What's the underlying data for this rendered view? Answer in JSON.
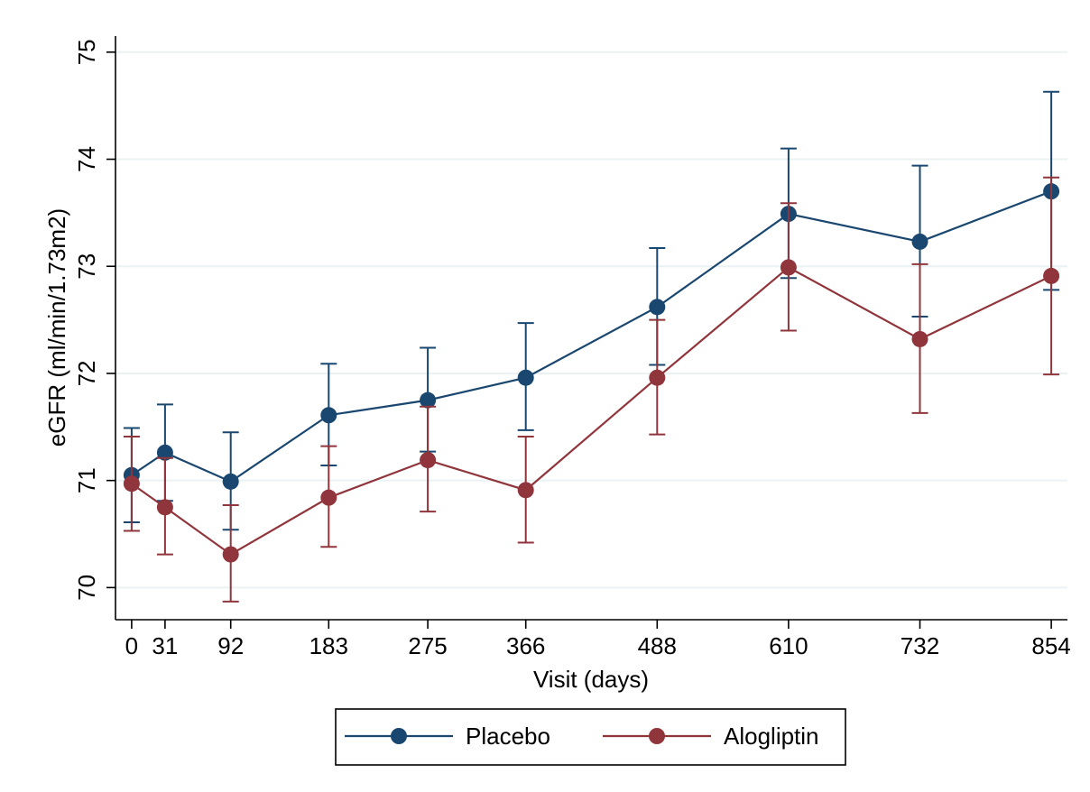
{
  "chart_data": {
    "type": "line",
    "title": "",
    "xlabel": "Visit (days)",
    "ylabel": "eGFR (ml/min/1.73m2)",
    "x": [
      0,
      31,
      92,
      183,
      275,
      366,
      488,
      610,
      732,
      854
    ],
    "x_tick_labels": [
      "0",
      "31",
      "92",
      "183",
      "275",
      "366",
      "488",
      "610",
      "732",
      "854"
    ],
    "y_ticks": [
      70,
      71,
      72,
      73,
      74,
      75
    ],
    "y_tick_labels": [
      "70",
      "71",
      "72",
      "73",
      "74",
      "75"
    ],
    "xlim": [
      -15,
      869
    ],
    "ylim": [
      69.7,
      75.15
    ],
    "grid": "horizontal",
    "legend_position": "bottom",
    "series": [
      {
        "name": "Placebo",
        "color": "#1a476f",
        "values": [
          71.05,
          71.26,
          70.99,
          71.61,
          71.75,
          71.96,
          72.62,
          73.49,
          73.23,
          73.7
        ],
        "lower": [
          70.61,
          70.81,
          70.54,
          71.14,
          71.27,
          71.47,
          72.08,
          72.89,
          72.53,
          72.78
        ],
        "upper": [
          71.49,
          71.71,
          71.45,
          72.09,
          72.24,
          72.47,
          73.17,
          74.1,
          73.94,
          74.63
        ]
      },
      {
        "name": "Alogliptin",
        "color": "#90353b",
        "values": [
          70.97,
          70.75,
          70.31,
          70.84,
          71.19,
          70.91,
          71.96,
          72.99,
          72.32,
          72.91
        ],
        "lower": [
          70.53,
          70.31,
          69.87,
          70.38,
          70.71,
          70.42,
          71.43,
          72.4,
          71.63,
          71.99
        ],
        "upper": [
          71.41,
          71.21,
          70.77,
          71.32,
          71.69,
          71.41,
          72.5,
          73.59,
          73.02,
          73.83
        ]
      }
    ]
  }
}
